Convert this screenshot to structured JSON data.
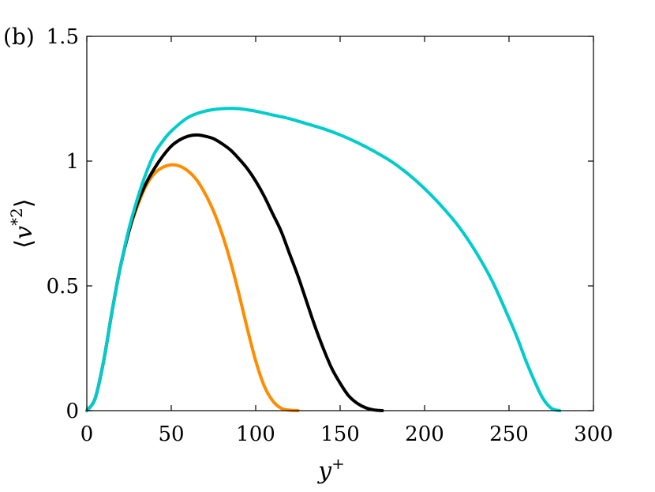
{
  "chart_data": {
    "type": "line",
    "panel_label": "(b)",
    "title": "",
    "xlabel": "y+",
    "xlabel_base": "y",
    "xlabel_sup": "+",
    "ylabel": "⟨v*2⟩",
    "ylabel_parts": {
      "open": "⟨",
      "base": "v",
      "sup": "*2",
      "close": "⟩"
    },
    "xlim": [
      0,
      300
    ],
    "ylim": [
      0,
      1.5
    ],
    "x_ticks": [
      0,
      50,
      100,
      150,
      200,
      250,
      300
    ],
    "x_tick_labels": [
      "0",
      "50",
      "100",
      "150",
      "200",
      "250",
      "300"
    ],
    "y_ticks": [
      0,
      0.5,
      1,
      1.5
    ],
    "y_tick_labels": [
      "0",
      "0.5",
      "1",
      "1.5"
    ],
    "grid": false,
    "series": [
      {
        "color": "#ff8c00",
        "x": [
          0,
          5,
          10,
          15,
          20,
          25,
          30,
          35,
          40,
          45,
          50,
          55,
          60,
          65,
          70,
          75,
          80,
          85,
          90,
          95,
          100,
          105,
          110,
          115,
          120,
          125
        ],
        "y": [
          0,
          0.05,
          0.2,
          0.4,
          0.58,
          0.72,
          0.82,
          0.9,
          0.95,
          0.975,
          0.985,
          0.98,
          0.96,
          0.925,
          0.87,
          0.8,
          0.71,
          0.6,
          0.47,
          0.33,
          0.2,
          0.1,
          0.04,
          0.01,
          0.002,
          0
        ]
      },
      {
        "color": "#000000",
        "x": [
          0,
          5,
          10,
          15,
          20,
          25,
          30,
          35,
          40,
          45,
          50,
          55,
          60,
          65,
          70,
          75,
          80,
          85,
          90,
          95,
          100,
          105,
          110,
          115,
          120,
          125,
          130,
          135,
          140,
          145,
          150,
          155,
          160,
          165,
          170,
          175
        ],
        "y": [
          0,
          0.05,
          0.2,
          0.4,
          0.58,
          0.72,
          0.83,
          0.91,
          0.97,
          1.02,
          1.06,
          1.085,
          1.1,
          1.105,
          1.1,
          1.09,
          1.07,
          1.045,
          1.01,
          0.97,
          0.92,
          0.86,
          0.79,
          0.72,
          0.63,
          0.54,
          0.44,
          0.34,
          0.25,
          0.17,
          0.11,
          0.06,
          0.03,
          0.012,
          0.003,
          0
        ]
      },
      {
        "color": "#00cccc",
        "x": [
          0,
          5,
          10,
          15,
          20,
          25,
          30,
          35,
          40,
          45,
          50,
          60,
          70,
          80,
          90,
          100,
          110,
          120,
          130,
          140,
          150,
          160,
          170,
          180,
          190,
          200,
          210,
          220,
          230,
          240,
          250,
          255,
          260,
          265,
          270,
          275,
          280
        ],
        "y": [
          0,
          0.05,
          0.2,
          0.4,
          0.58,
          0.73,
          0.85,
          0.95,
          1.03,
          1.08,
          1.12,
          1.175,
          1.2,
          1.21,
          1.21,
          1.2,
          1.185,
          1.17,
          1.15,
          1.13,
          1.105,
          1.075,
          1.04,
          1.0,
          0.95,
          0.89,
          0.82,
          0.74,
          0.64,
          0.52,
          0.37,
          0.29,
          0.2,
          0.12,
          0.05,
          0.01,
          0
        ]
      }
    ]
  }
}
